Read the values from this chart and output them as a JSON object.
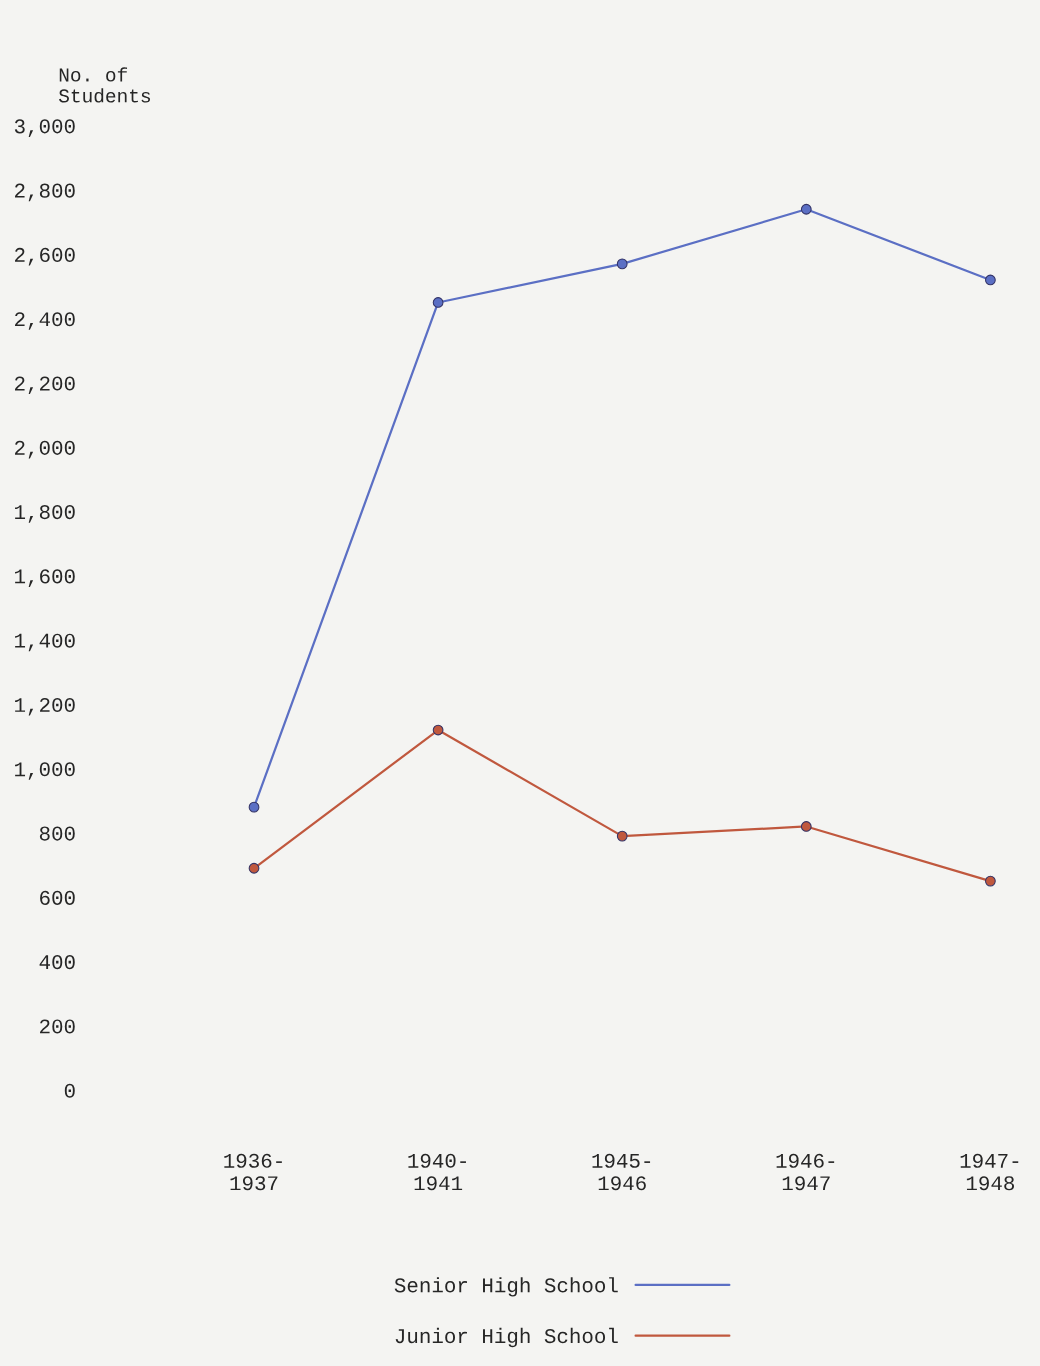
{
  "chart_data": {
    "type": "line",
    "ylabel": "No. of\nStudents",
    "categories": [
      "1936-\n1937",
      "1940-\n1941",
      "1945-\n1946",
      "1946-\n1947",
      "1947-\n1948"
    ],
    "series": [
      {
        "name": "Senior High School",
        "color": "#5b6fc4",
        "values": [
          880,
          2450,
          2570,
          2740,
          2520
        ]
      },
      {
        "name": "Junior High School",
        "color": "#c0583e",
        "values": [
          690,
          1120,
          790,
          820,
          650
        ]
      }
    ],
    "ylim": [
      0,
      3000
    ],
    "yticks": [
      {
        "value": 0,
        "label": "0"
      },
      {
        "value": 200,
        "label": "200"
      },
      {
        "value": 400,
        "label": "400"
      },
      {
        "value": 600,
        "label": "600"
      },
      {
        "value": 800,
        "label": "800"
      },
      {
        "value": 1000,
        "label": "1,000"
      },
      {
        "value": 1200,
        "label": "1,200"
      },
      {
        "value": 1400,
        "label": "1,400"
      },
      {
        "value": 1600,
        "label": "1,600"
      },
      {
        "value": 1800,
        "label": "1,800"
      },
      {
        "value": 2000,
        "label": "2,000"
      },
      {
        "value": 2200,
        "label": "2,200"
      },
      {
        "value": 2400,
        "label": "2,400"
      },
      {
        "value": 2600,
        "label": "2,600"
      },
      {
        "value": 2800,
        "label": "2,800"
      },
      {
        "value": 3000,
        "label": "3,000"
      }
    ],
    "grid": false,
    "legend": "bottom",
    "marker": "circle",
    "line_style": "solid"
  }
}
